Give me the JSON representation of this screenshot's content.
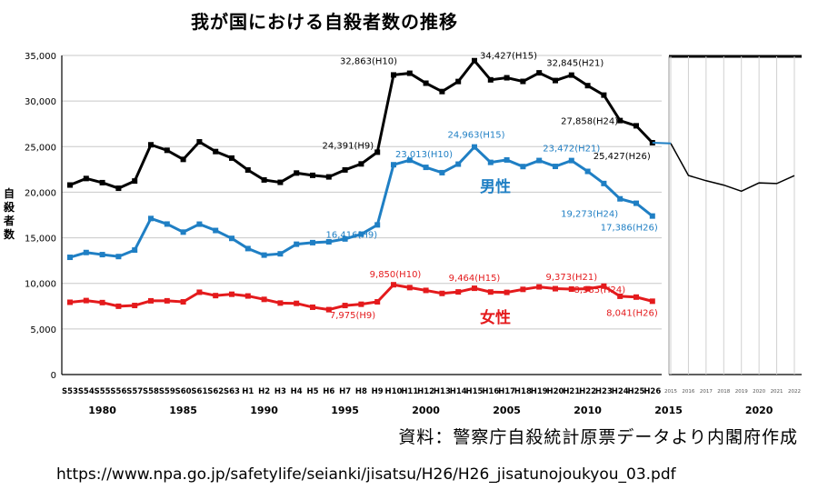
{
  "title": "我が国における自殺者数の推移",
  "ylabel": "自殺者数",
  "source_note": "資料：警察庁自殺統計原票データより内閣府作成",
  "url": "https://www.npa.go.jp/safetylife/seianki/jisatsu/H26/H26_jisatunojoukyou_03.pdf",
  "chart_data": [
    {
      "type": "line",
      "title": "我が国における自殺者数の推移",
      "ylabel": "自殺者数",
      "ylim": [
        0,
        35000
      ],
      "yticks": [
        0,
        5000,
        10000,
        15000,
        20000,
        25000,
        30000,
        35000
      ],
      "ytick_labels": [
        "0",
        "5,000",
        "10,000",
        "15,000",
        "20,000",
        "25,000",
        "30,000",
        "35,000"
      ],
      "categories": [
        "S53",
        "S54",
        "S55",
        "S56",
        "S57",
        "S58",
        "S59",
        "S60",
        "S61",
        "S62",
        "S63",
        "H1",
        "H2",
        "H3",
        "H4",
        "H5",
        "H6",
        "H7",
        "H8",
        "H9",
        "H10",
        "H11",
        "H12",
        "H13",
        "H14",
        "H15",
        "H16",
        "H17",
        "H18",
        "H19",
        "H20",
        "H21",
        "H22",
        "H23",
        "H24",
        "H25",
        "H26"
      ],
      "year_labels": [
        {
          "label": "1980",
          "at": "S55"
        },
        {
          "label": "1985",
          "at": "S60"
        },
        {
          "label": "1990",
          "at": "H2"
        },
        {
          "label": "1995",
          "at": "H7"
        },
        {
          "label": "2000",
          "at": "H12"
        },
        {
          "label": "2005",
          "at": "H17"
        },
        {
          "label": "2010",
          "at": "H22"
        },
        {
          "label": "2015",
          "at": "H27"
        }
      ],
      "grid": true,
      "series": [
        {
          "name": "",
          "color": "#000000",
          "values": [
            20788,
            21503,
            21048,
            20434,
            21228,
            25202,
            24596,
            23599,
            25524,
            24460,
            23742,
            22436,
            21346,
            21084,
            22104,
            21851,
            21679,
            22445,
            23104,
            24391,
            32863,
            33048,
            31957,
            31042,
            32143,
            34427,
            32325,
            32552,
            32155,
            33093,
            32249,
            32845,
            31690,
            30651,
            27858,
            27283,
            25427
          ]
        },
        {
          "name": "男性",
          "color": "#1f7fc4",
          "values": [
            12859,
            13386,
            13155,
            12942,
            13654,
            17116,
            16508,
            15624,
            16497,
            15802,
            14934,
            13818,
            13102,
            13242,
            14296,
            14468,
            14560,
            14874,
            15393,
            16416,
            23013,
            23512,
            22727,
            22144,
            23080,
            24963,
            23272,
            23540,
            22813,
            23478,
            22831,
            23472,
            22283,
            20955,
            19273,
            18787,
            17386
          ]
        },
        {
          "name": "女性",
          "color": "#e41a1c",
          "values": [
            7929,
            8117,
            7893,
            7492,
            7574,
            8086,
            8088,
            7975,
            9027,
            8658,
            8808,
            8618,
            8244,
            7842,
            7808,
            7383,
            7119,
            7571,
            7711,
            7975,
            9850,
            9536,
            9230,
            8898,
            9063,
            9464,
            9053,
            9012,
            9342,
            9615,
            9418,
            9373,
            9407,
            9696,
            8585,
            8496,
            8041
          ]
        }
      ],
      "annotations": [
        {
          "series": 0,
          "at": "H9",
          "text": "24,391(H9)"
        },
        {
          "series": 0,
          "at": "H10",
          "text": "32,863(H10)"
        },
        {
          "series": 0,
          "at": "H15",
          "text": "34,427(H15)"
        },
        {
          "series": 0,
          "at": "H21",
          "text": "32,845(H21)"
        },
        {
          "series": 0,
          "at": "H24",
          "text": "27,858(H24)"
        },
        {
          "series": 0,
          "at": "H26",
          "text": "25,427(H26)"
        },
        {
          "series": 1,
          "at": "H9",
          "text": "16,416(H9)"
        },
        {
          "series": 1,
          "at": "H10",
          "text": "23,013(H10)"
        },
        {
          "series": 1,
          "at": "H15",
          "text": "24,963(H15)"
        },
        {
          "series": 1,
          "at": "H21",
          "text": "23,472(H21)"
        },
        {
          "series": 1,
          "at": "H24",
          "text": "19,273(H24)"
        },
        {
          "series": 1,
          "at": "H26",
          "text": "17,386(H26)"
        },
        {
          "series": 2,
          "at": "H9",
          "text": "7,975(H9)"
        },
        {
          "series": 2,
          "at": "H10",
          "text": "9,850(H10)"
        },
        {
          "series": 2,
          "at": "H15",
          "text": "9,464(H15)"
        },
        {
          "series": 2,
          "at": "H21",
          "text": "9,373(H21)"
        },
        {
          "series": 2,
          "at": "H24",
          "text": "8,585(H24)"
        },
        {
          "series": 2,
          "at": "H26",
          "text": "8,041(H26)"
        }
      ]
    },
    {
      "type": "line",
      "title": "",
      "x": [
        2015,
        2016,
        2017,
        2018,
        2019,
        2020,
        2021,
        2022
      ],
      "xtick_labels": [
        "2015",
        "2016",
        "2017",
        "2018",
        "2019",
        "2020",
        "2021",
        "2022"
      ],
      "year_labels": [
        "2020"
      ],
      "series": [
        {
          "name": "",
          "color": "#000000",
          "values": [
            25427,
            21897,
            21321,
            20840,
            20169,
            21081,
            21007,
            21881
          ]
        }
      ]
    }
  ]
}
